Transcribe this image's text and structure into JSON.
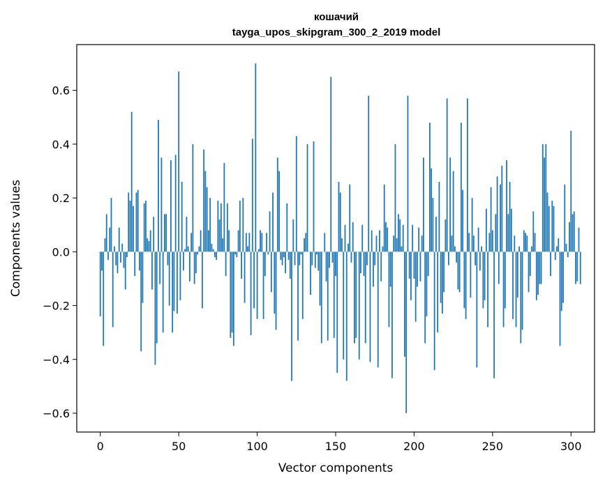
{
  "chart_data": {
    "type": "bar",
    "title": "кошачий",
    "subtitle": "tayga_upos_skipgram_300_2_2019 model",
    "xlabel": "Vector components",
    "ylabel": "Components values",
    "xlim": [
      -15,
      315
    ],
    "ylim": [
      -0.67,
      0.77
    ],
    "x_ticks": [
      0,
      50,
      100,
      150,
      200,
      250,
      300
    ],
    "x_tick_labels": [
      "0",
      "50",
      "100",
      "150",
      "200",
      "250",
      "300"
    ],
    "y_ticks": [
      -0.6,
      -0.4,
      -0.2,
      0.0,
      0.2,
      0.4,
      0.6
    ],
    "y_tick_labels": [
      "−0.6",
      "−0.4",
      "−0.2",
      "0.0",
      "0.2",
      "0.4",
      "0.6"
    ],
    "bar_color": "#1f77b4",
    "grid": false,
    "legend": "none",
    "values": [
      -0.24,
      -0.07,
      -0.35,
      0.05,
      0.14,
      -0.03,
      0.09,
      0.2,
      -0.28,
      0.02,
      -0.05,
      -0.08,
      0.09,
      -0.04,
      0.03,
      -0.06,
      -0.14,
      -0.02,
      0.22,
      0.19,
      0.52,
      0.17,
      -0.09,
      0.22,
      0.23,
      -0.07,
      -0.37,
      -0.19,
      0.18,
      0.19,
      0.05,
      0.04,
      0.08,
      -0.14,
      0.13,
      -0.42,
      -0.34,
      0.49,
      -0.12,
      0.35,
      -0.3,
      0.14,
      0.14,
      -0.05,
      -0.2,
      0.34,
      -0.3,
      -0.22,
      0.36,
      -0.23,
      0.67,
      -0.18,
      0.26,
      -0.07,
      0.01,
      0.13,
      0.02,
      -0.11,
      0.07,
      0.4,
      -0.12,
      -0.08,
      -0.01,
      0.02,
      0.08,
      -0.21,
      0.38,
      0.3,
      0.24,
      0.08,
      0.2,
      0.03,
      0.01,
      -0.02,
      -0.03,
      0.19,
      0.12,
      0.18,
      0.05,
      0.33,
      -0.09,
      0.18,
      0.08,
      -0.32,
      -0.3,
      -0.35,
      -0.01,
      -0.02,
      0.08,
      0.19,
      -0.1,
      0.2,
      -0.19,
      0.07,
      0.02,
      0.07,
      -0.31,
      0.42,
      -0.21,
      0.7,
      -0.25,
      0.01,
      0.08,
      0.07,
      -0.25,
      -0.09,
      0.07,
      -0.01,
      0.15,
      -0.15,
      0.22,
      -0.23,
      -0.29,
      0.35,
      0.3,
      -0.03,
      -0.05,
      -0.02,
      -0.08,
      0.18,
      -0.03,
      -0.1,
      -0.48,
      0.12,
      -0.05,
      0.43,
      -0.33,
      -0.05,
      -0.01,
      -0.25,
      0.05,
      0.07,
      0.4,
      0.0,
      -0.16,
      -0.05,
      0.41,
      -0.06,
      -0.01,
      -0.07,
      -0.2,
      -0.34,
      0.0,
      0.07,
      -0.11,
      -0.33,
      -0.06,
      0.65,
      -0.04,
      -0.32,
      -0.09,
      -0.45,
      0.26,
      0.22,
      0.05,
      -0.4,
      0.1,
      -0.48,
      0.03,
      0.25,
      -0.04,
      0.11,
      -0.34,
      -0.32,
      0.0,
      -0.4,
      -0.08,
      0.1,
      -0.09,
      -0.34,
      -0.05,
      0.58,
      -0.41,
      0.08,
      -0.13,
      -0.05,
      0.06,
      -0.43,
      0.08,
      -0.11,
      0.02,
      0.25,
      0.11,
      0.09,
      -0.28,
      -0.13,
      -0.47,
      0.06,
      0.4,
      0.05,
      0.14,
      0.12,
      0.02,
      0.1,
      -0.39,
      -0.6,
      0.58,
      -0.1,
      -0.18,
      0.1,
      -0.1,
      -0.26,
      -0.13,
      0.09,
      -0.11,
      0.06,
      0.35,
      -0.34,
      -0.24,
      -0.09,
      0.48,
      0.31,
      0.2,
      -0.44,
      0.13,
      -0.3,
      0.26,
      -0.19,
      -0.23,
      -0.15,
      0.12,
      0.57,
      -0.05,
      0.35,
      0.06,
      0.3,
      0.02,
      -0.04,
      -0.14,
      -0.15,
      0.48,
      0.23,
      -0.21,
      -0.25,
      0.57,
      0.07,
      -0.17,
      0.2,
      0.06,
      -0.05,
      -0.43,
      0.09,
      -0.07,
      0.02,
      -0.21,
      -0.18,
      0.16,
      -0.28,
      0.07,
      0.24,
      0.08,
      -0.47,
      0.14,
      0.28,
      -0.12,
      0.25,
      0.32,
      -0.28,
      -0.21,
      0.34,
      0.14,
      0.26,
      0.16,
      -0.25,
      0.06,
      -0.28,
      -0.17,
      0.02,
      -0.34,
      -0.29,
      0.08,
      0.07,
      0.06,
      -0.15,
      -0.09,
      0.02,
      0.15,
      0.07,
      -0.18,
      -0.16,
      -0.12,
      -0.12,
      0.4,
      0.35,
      0.4,
      0.22,
      0.17,
      -0.09,
      0.19,
      0.17,
      -0.03,
      0.02,
      0.05,
      -0.35,
      -0.22,
      -0.19,
      0.25,
      0.03,
      -0.02,
      0.11,
      0.45,
      0.14,
      0.15,
      -0.12,
      -0.11,
      0.09,
      -0.12
    ]
  }
}
